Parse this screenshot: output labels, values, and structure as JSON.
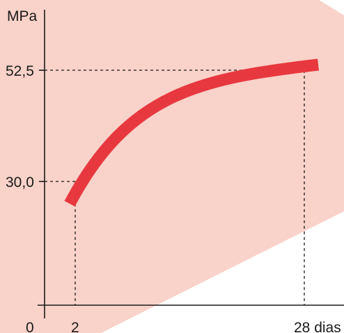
{
  "colors": {
    "background_band": "#f9d2c9",
    "curve": "#e8383f",
    "axis": "#1a1a1a",
    "guide": "#1a1a1a"
  },
  "chart_data": {
    "type": "line",
    "y_unit_label": "MPa",
    "x_origin_label": "0",
    "y_ticks": [
      {
        "value": 30.0,
        "label": "30,0"
      },
      {
        "value": 52.5,
        "label": "52,5"
      }
    ],
    "x_ticks": [
      {
        "value": 2,
        "label": "2"
      },
      {
        "value": 28,
        "label": "28 dias"
      }
    ],
    "series": [
      {
        "points": [
          {
            "x": 2,
            "y": 30.0
          },
          {
            "x": 28,
            "y": 52.5
          }
        ]
      }
    ],
    "xlim": [
      0,
      30
    ],
    "ylim": [
      0,
      60
    ],
    "grid": false
  }
}
